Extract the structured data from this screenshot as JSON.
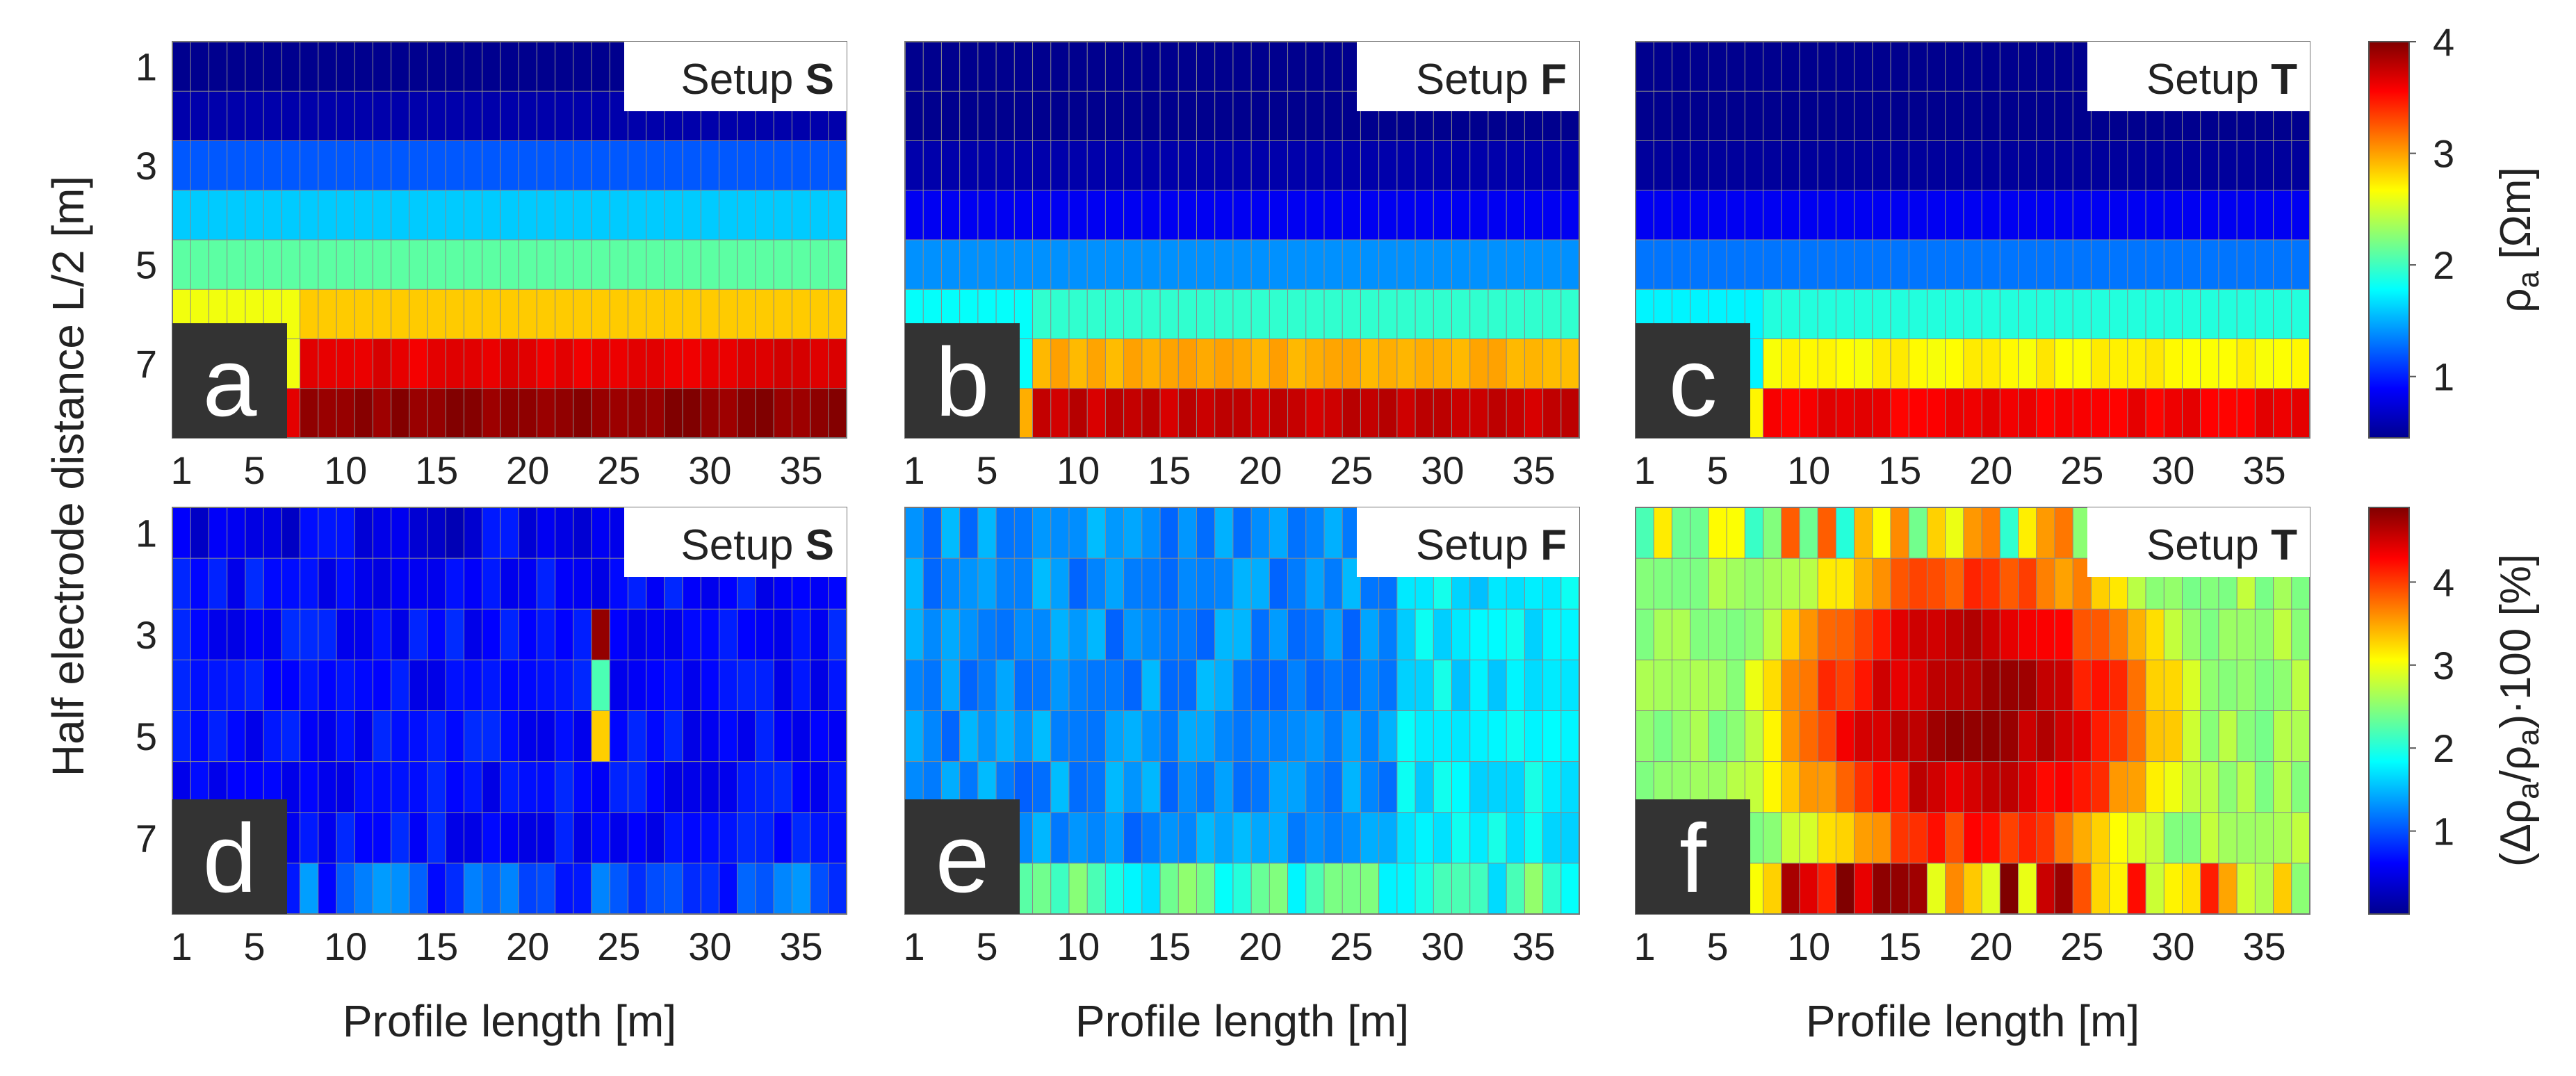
{
  "figure": {
    "ylabel": "Half electrode distance L/2 [m]",
    "colorbar_top": {
      "label_main": "ρ",
      "label_sub": "a",
      "label_unit": " [Ωm]",
      "ticks": [
        "1",
        "2",
        "3",
        "4"
      ],
      "range": [
        0.45,
        4.0
      ]
    },
    "colorbar_bottom": {
      "label_pre": "(Δρ",
      "label_sub1": "a",
      "label_mid": "/ρ",
      "label_sub2": "a",
      "label_post": ")·100 [%]",
      "ticks": [
        "1",
        "2",
        "3",
        "4"
      ],
      "range": [
        0,
        4.9
      ]
    },
    "colors": {
      "grid": "#8a8a8a",
      "label_bg": "#333333",
      "label_text": "#ffffff"
    }
  },
  "chart_data": [
    {
      "id": "a",
      "type": "heatmap",
      "panel_label": "a",
      "setup_prefix": "Setup ",
      "setup_letter": "S",
      "quantity": "apparent resistivity ρa [Ωm]",
      "x_range": [
        1,
        37
      ],
      "y_rows": [
        1,
        2,
        3,
        4,
        5,
        6,
        7,
        8
      ],
      "row_values": [
        0.5,
        0.6,
        1.2,
        1.6,
        2.1,
        2.85,
        3.65,
        3.95
      ],
      "model": "layered-S",
      "xlabel": "",
      "xticks": [
        "1",
        "5",
        "10",
        "15",
        "20",
        "25",
        "30",
        "35"
      ],
      "yticks": [
        "1",
        "3",
        "5",
        "7"
      ]
    },
    {
      "id": "b",
      "type": "heatmap",
      "panel_label": "b",
      "setup_prefix": "Setup ",
      "setup_letter": "F",
      "quantity": "apparent resistivity ρa [Ωm]",
      "x_range": [
        1,
        37
      ],
      "y_rows": [
        1,
        2,
        3,
        4,
        5,
        6,
        7,
        8
      ],
      "row_values": [
        0.5,
        0.5,
        0.6,
        0.85,
        1.4,
        1.95,
        2.95,
        3.75
      ],
      "model": "layered-F",
      "xlabel": "",
      "xticks": [
        "1",
        "5",
        "10",
        "15",
        "20",
        "25",
        "30",
        "35"
      ],
      "yticks": []
    },
    {
      "id": "c",
      "type": "heatmap",
      "panel_label": "c",
      "setup_prefix": "Setup ",
      "setup_letter": "T",
      "quantity": "apparent resistivity ρa [Ωm]",
      "x_range": [
        1,
        37
      ],
      "y_rows": [
        1,
        2,
        3,
        4,
        5,
        6,
        7,
        8
      ],
      "row_values": [
        0.5,
        0.5,
        0.55,
        0.85,
        1.3,
        1.9,
        2.7,
        3.6
      ],
      "model": "layered-T",
      "xlabel": "",
      "xticks": [
        "1",
        "5",
        "10",
        "15",
        "20",
        "25",
        "30",
        "35"
      ],
      "yticks": []
    },
    {
      "id": "d",
      "type": "heatmap",
      "panel_label": "d",
      "setup_prefix": "Setup ",
      "setup_letter": "S",
      "quantity": "relative change (Δρa/ρa)·100 [%]",
      "x_range": [
        1,
        37
      ],
      "y_rows": [
        1,
        2,
        3,
        4,
        5,
        6,
        7,
        8
      ],
      "base_percent": 0.65,
      "bottom_row_percent": 1.0,
      "outliers": [
        {
          "x": 24,
          "row": 3,
          "percent": 4.8
        },
        {
          "x": 24,
          "row": 4,
          "percent": 2.2
        },
        {
          "x": 24,
          "row": 5,
          "percent": 3.3
        }
      ],
      "model": "change-S",
      "xlabel": "Profile length [m]",
      "xticks": [
        "1",
        "5",
        "10",
        "15",
        "20",
        "25",
        "30",
        "35"
      ],
      "yticks": [
        "1",
        "3",
        "5",
        "7"
      ]
    },
    {
      "id": "e",
      "type": "heatmap",
      "panel_label": "e",
      "setup_prefix": "Setup ",
      "setup_letter": "F",
      "quantity": "relative change (Δρa/ρa)·100 [%]",
      "x_range": [
        1,
        37
      ],
      "y_rows": [
        1,
        2,
        3,
        4,
        5,
        6,
        7,
        8
      ],
      "base_percent": 1.3,
      "right_part_percent": 1.75,
      "bottom_row_percent": 2.1,
      "model": "change-F",
      "xlabel": "Profile length [m]",
      "xticks": [
        "1",
        "5",
        "10",
        "15",
        "20",
        "25",
        "30",
        "35"
      ],
      "yticks": []
    },
    {
      "id": "f",
      "type": "heatmap",
      "panel_label": "f",
      "setup_prefix": "Setup ",
      "setup_letter": "T",
      "quantity": "relative change (Δρa/ρa)·100 [%]",
      "x_range": [
        1,
        37
      ],
      "y_rows": [
        1,
        2,
        3,
        4,
        5,
        6,
        7,
        8
      ],
      "center_x": 19,
      "center_row": 4.6,
      "peak_percent": 4.8,
      "edge_percent": 2.6,
      "model": "change-T",
      "xlabel": "Profile length [m]",
      "xticks": [
        "1",
        "5",
        "10",
        "15",
        "20",
        "25",
        "30",
        "35"
      ],
      "yticks": []
    }
  ]
}
